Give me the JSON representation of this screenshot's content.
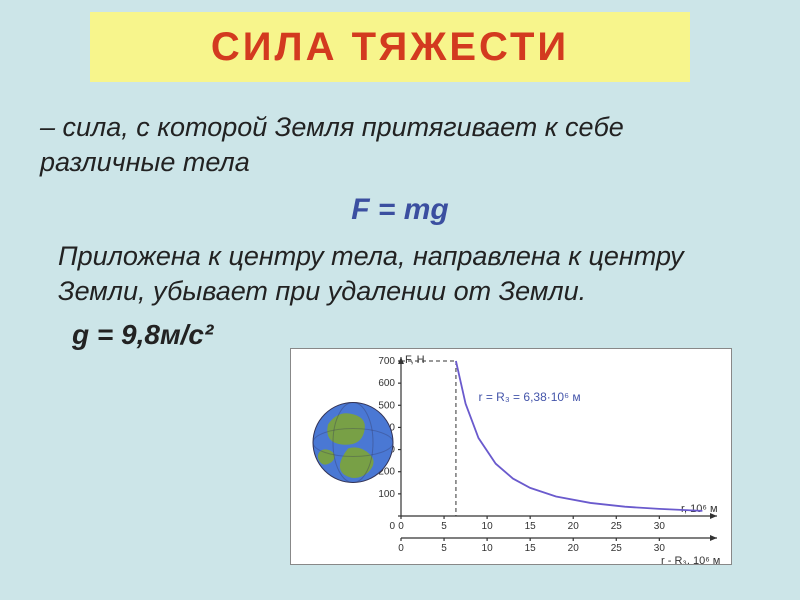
{
  "title": {
    "text": "СИЛА  ТЯЖЕСТИ",
    "color": "#d33a1f",
    "bg_color": "#f7f58c"
  },
  "body": {
    "definition": "– сила, с которой Земля притягивает к себе различные тела",
    "formula": "F = mg",
    "formula_color": "#3b4fa0",
    "application": "Приложена к центру тела, направлена к центру Земли, убывает при удалении от Земли.",
    "g_const": "g = 9,8м/с²",
    "text_color": "#222222"
  },
  "chart": {
    "type": "line",
    "bg_color": "#ffffff",
    "curve_color": "#6a5acd",
    "y_label": "F, Н",
    "y_ticks": [
      0,
      100,
      200,
      300,
      400,
      500,
      600,
      700
    ],
    "ylim": [
      0,
      700
    ],
    "x_label_top": "r, 10⁶ м",
    "x_label_bottom": "r - R₃, 10⁶ м",
    "x_ticks": [
      0,
      5,
      10,
      15,
      20,
      25,
      30
    ],
    "xlim": [
      0,
      36
    ],
    "radius_text": "r = R₃ = 6,38·10⁶ м",
    "radius_text_color": "#3b4fa0",
    "globe": {
      "ocean_color": "#4a78d4",
      "land_color": "#7aa23e"
    },
    "curve_points": [
      {
        "x": 6.38,
        "y": 700
      },
      {
        "x": 7.5,
        "y": 507
      },
      {
        "x": 9,
        "y": 352
      },
      {
        "x": 11,
        "y": 236
      },
      {
        "x": 13,
        "y": 169
      },
      {
        "x": 15,
        "y": 127
      },
      {
        "x": 18,
        "y": 88
      },
      {
        "x": 22,
        "y": 59
      },
      {
        "x": 26,
        "y": 42
      },
      {
        "x": 30,
        "y": 32
      },
      {
        "x": 35,
        "y": 23
      }
    ]
  }
}
